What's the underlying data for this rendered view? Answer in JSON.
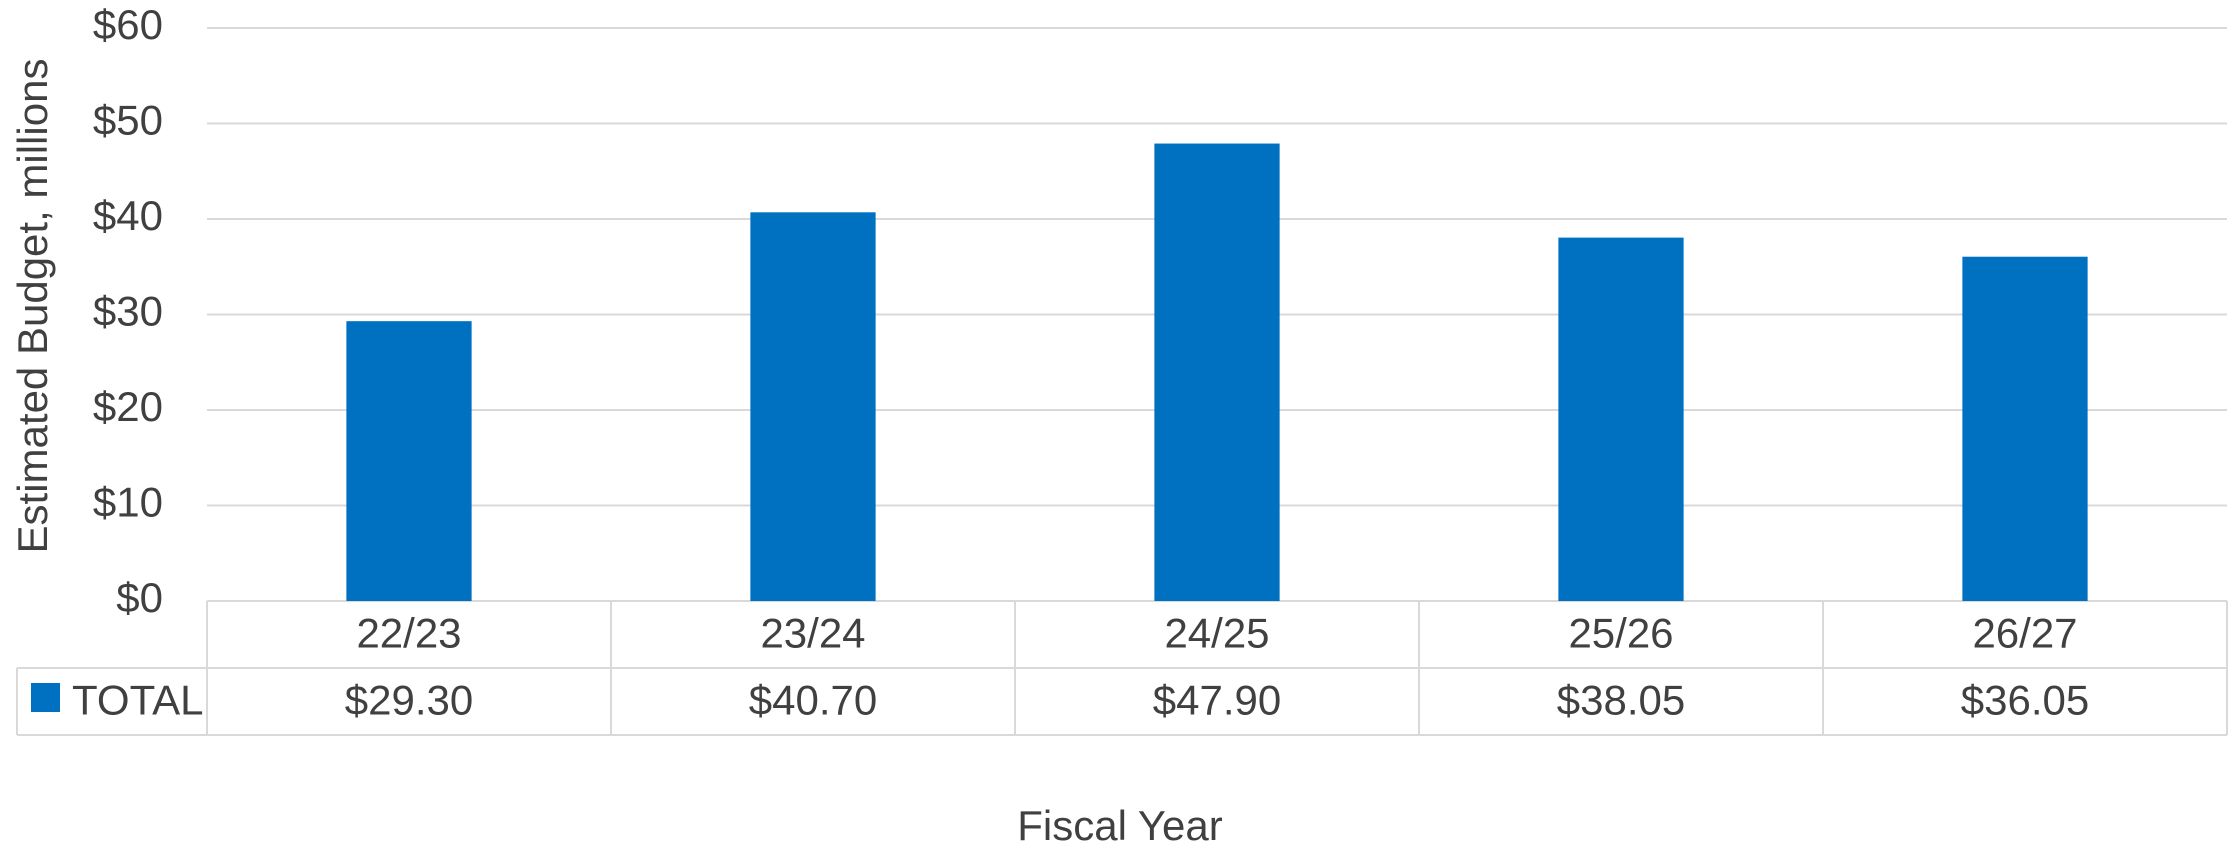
{
  "chart_data": {
    "type": "bar",
    "y_label": "Estimated Budget, millions",
    "x_label": "Fiscal Year",
    "categories": [
      "22/23",
      "23/24",
      "24/25",
      "25/26",
      "26/27"
    ],
    "series": [
      {
        "name": "TOTAL",
        "color": "#0070c0",
        "values": [
          29.3,
          40.7,
          47.9,
          38.05,
          36.05
        ],
        "value_labels": [
          "$29.30",
          "$40.70",
          "$47.90",
          "$38.05",
          "$36.05"
        ]
      }
    ],
    "ylim": [
      0,
      60
    ],
    "yticks": [
      {
        "value": 0,
        "label": "$0"
      },
      {
        "value": 10,
        "label": "$10"
      },
      {
        "value": 20,
        "label": "$20"
      },
      {
        "value": 30,
        "label": "$30"
      },
      {
        "value": 40,
        "label": "$40"
      },
      {
        "value": 50,
        "label": "$50"
      },
      {
        "value": 60,
        "label": "$60"
      }
    ],
    "grid": true
  }
}
